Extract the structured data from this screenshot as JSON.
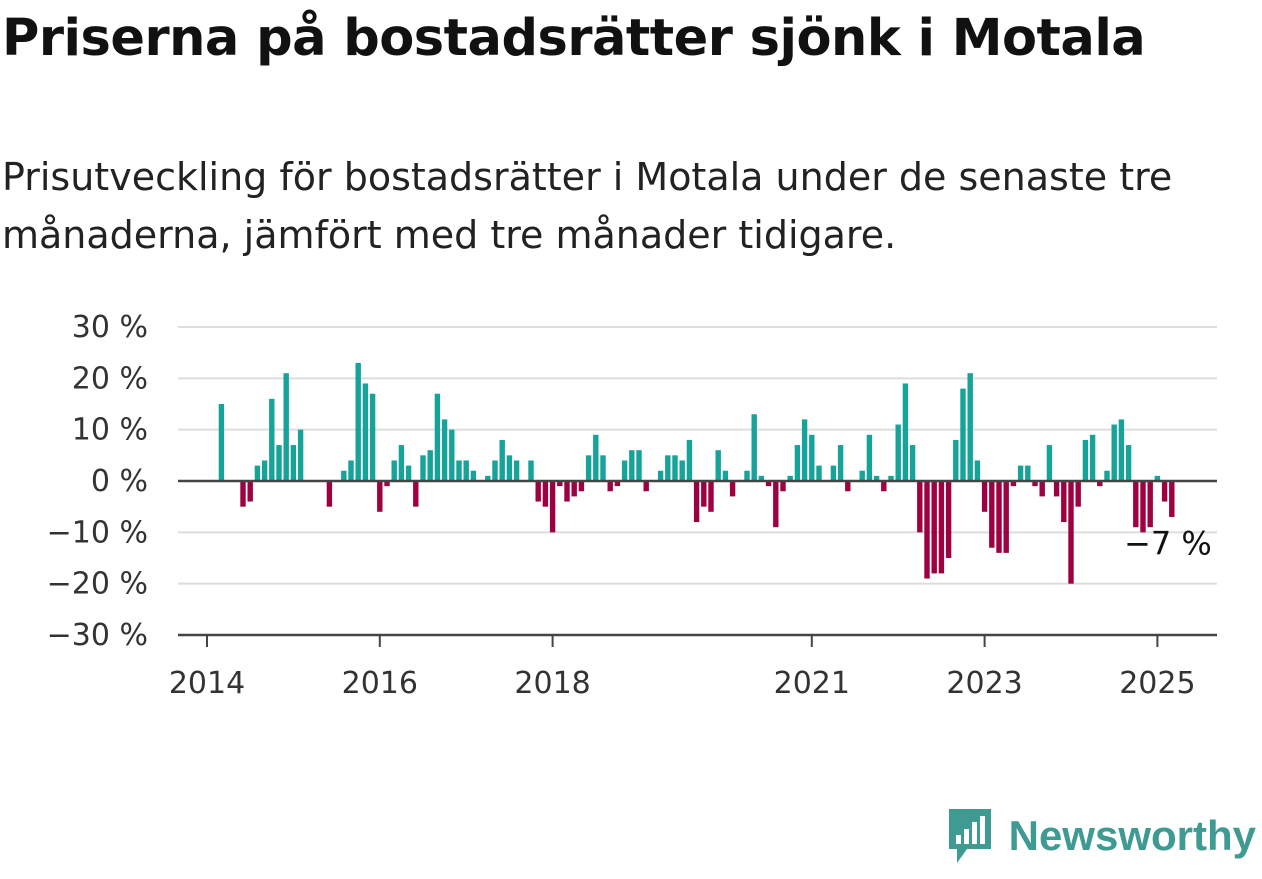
{
  "header": {
    "title": "Priserna på bostadsrätter sjönk i Motala",
    "subtitle": "Prisutveckling för bostadsrätter i Motala under de senaste tre månaderna, jämfört med tre månader tidigare."
  },
  "brand": {
    "name": "Newsworthy",
    "icon": "newsworthy-logo-icon"
  },
  "colors": {
    "positive": "#16a39a",
    "negative": "#9e0142",
    "grid": "#dddddd",
    "axis": "#444444"
  },
  "chart_data": {
    "type": "bar",
    "ylim": [
      -30,
      30
    ],
    "yticks": [
      30,
      20,
      10,
      0,
      -10,
      -20,
      -30
    ],
    "ytick_labels": [
      "30 %",
      "20 %",
      "10 %",
      "0 %",
      "−10 %",
      "−20 %",
      "−30 %"
    ],
    "xticks": [
      {
        "label": "2014",
        "x": "2014-01"
      },
      {
        "label": "2016",
        "x": "2016-01"
      },
      {
        "label": "2018",
        "x": "2018-01"
      },
      {
        "label": "2021",
        "x": "2021-01"
      },
      {
        "label": "2023",
        "x": "2023-01"
      },
      {
        "label": "2025",
        "x": "2025-01"
      }
    ],
    "end_label": "−7 %",
    "series": [
      {
        "points": [
          [
            "2014-03",
            15
          ],
          [
            "2014-06",
            -5
          ],
          [
            "2014-07",
            -4
          ],
          [
            "2014-08",
            3
          ],
          [
            "2014-09",
            4
          ],
          [
            "2014-10",
            16
          ],
          [
            "2014-11",
            7
          ],
          [
            "2014-12",
            21
          ],
          [
            "2015-01",
            7
          ],
          [
            "2015-02",
            10
          ],
          [
            "2015-06",
            -5
          ],
          [
            "2015-08",
            2
          ],
          [
            "2015-09",
            4
          ],
          [
            "2015-10",
            23
          ],
          [
            "2015-11",
            19
          ],
          [
            "2015-12",
            17
          ],
          [
            "2016-01",
            -6
          ],
          [
            "2016-02",
            -1
          ],
          [
            "2016-03",
            4
          ],
          [
            "2016-04",
            7
          ],
          [
            "2016-05",
            3
          ],
          [
            "2016-06",
            -5
          ],
          [
            "2016-07",
            5
          ],
          [
            "2016-08",
            6
          ],
          [
            "2016-09",
            17
          ],
          [
            "2016-10",
            12
          ],
          [
            "2016-11",
            10
          ],
          [
            "2016-12",
            4
          ],
          [
            "2017-01",
            4
          ],
          [
            "2017-02",
            2
          ],
          [
            "2017-04",
            1
          ],
          [
            "2017-05",
            4
          ],
          [
            "2017-06",
            8
          ],
          [
            "2017-07",
            5
          ],
          [
            "2017-08",
            4
          ],
          [
            "2017-10",
            4
          ],
          [
            "2017-11",
            -4
          ],
          [
            "2017-12",
            -5
          ],
          [
            "2018-01",
            -10
          ],
          [
            "2018-02",
            -1
          ],
          [
            "2018-03",
            -4
          ],
          [
            "2018-04",
            -3
          ],
          [
            "2018-05",
            -2
          ],
          [
            "2018-06",
            5
          ],
          [
            "2018-07",
            9
          ],
          [
            "2018-08",
            5
          ],
          [
            "2018-09",
            -2
          ],
          [
            "2018-10",
            -1
          ],
          [
            "2018-11",
            4
          ],
          [
            "2018-12",
            6
          ],
          [
            "2019-01",
            6
          ],
          [
            "2019-02",
            -2
          ],
          [
            "2019-04",
            2
          ],
          [
            "2019-05",
            5
          ],
          [
            "2019-06",
            5
          ],
          [
            "2019-07",
            4
          ],
          [
            "2019-08",
            8
          ],
          [
            "2019-09",
            -8
          ],
          [
            "2019-10",
            -5
          ],
          [
            "2019-11",
            -6
          ],
          [
            "2019-12",
            6
          ],
          [
            "2020-01",
            2
          ],
          [
            "2020-02",
            -3
          ],
          [
            "2020-04",
            2
          ],
          [
            "2020-05",
            13
          ],
          [
            "2020-06",
            1
          ],
          [
            "2020-07",
            -1
          ],
          [
            "2020-08",
            -9
          ],
          [
            "2020-09",
            -2
          ],
          [
            "2020-10",
            1
          ],
          [
            "2020-11",
            7
          ],
          [
            "2020-12",
            12
          ],
          [
            "2021-01",
            9
          ],
          [
            "2021-02",
            3
          ],
          [
            "2021-04",
            3
          ],
          [
            "2021-05",
            7
          ],
          [
            "2021-06",
            -2
          ],
          [
            "2021-08",
            2
          ],
          [
            "2021-09",
            9
          ],
          [
            "2021-10",
            1
          ],
          [
            "2021-11",
            -2
          ],
          [
            "2021-12",
            1
          ],
          [
            "2022-01",
            11
          ],
          [
            "2022-02",
            19
          ],
          [
            "2022-03",
            7
          ],
          [
            "2022-04",
            -10
          ],
          [
            "2022-05",
            -19
          ],
          [
            "2022-06",
            -18
          ],
          [
            "2022-07",
            -18
          ],
          [
            "2022-08",
            -15
          ],
          [
            "2022-09",
            8
          ],
          [
            "2022-10",
            18
          ],
          [
            "2022-11",
            21
          ],
          [
            "2022-12",
            4
          ],
          [
            "2023-01",
            -6
          ],
          [
            "2023-02",
            -13
          ],
          [
            "2023-03",
            -14
          ],
          [
            "2023-04",
            -14
          ],
          [
            "2023-05",
            -1
          ],
          [
            "2023-06",
            3
          ],
          [
            "2023-07",
            3
          ],
          [
            "2023-08",
            -1
          ],
          [
            "2023-09",
            -3
          ],
          [
            "2023-10",
            7
          ],
          [
            "2023-11",
            -3
          ],
          [
            "2023-12",
            -8
          ],
          [
            "2024-01",
            -20
          ],
          [
            "2024-02",
            -5
          ],
          [
            "2024-03",
            8
          ],
          [
            "2024-04",
            9
          ],
          [
            "2024-05",
            -1
          ],
          [
            "2024-06",
            2
          ],
          [
            "2024-07",
            11
          ],
          [
            "2024-08",
            12
          ],
          [
            "2024-09",
            7
          ],
          [
            "2024-10",
            -9
          ],
          [
            "2024-11",
            -10
          ],
          [
            "2024-12",
            -9
          ],
          [
            "2025-01",
            1
          ],
          [
            "2025-02",
            -4
          ],
          [
            "2025-03",
            -7
          ]
        ]
      }
    ]
  }
}
